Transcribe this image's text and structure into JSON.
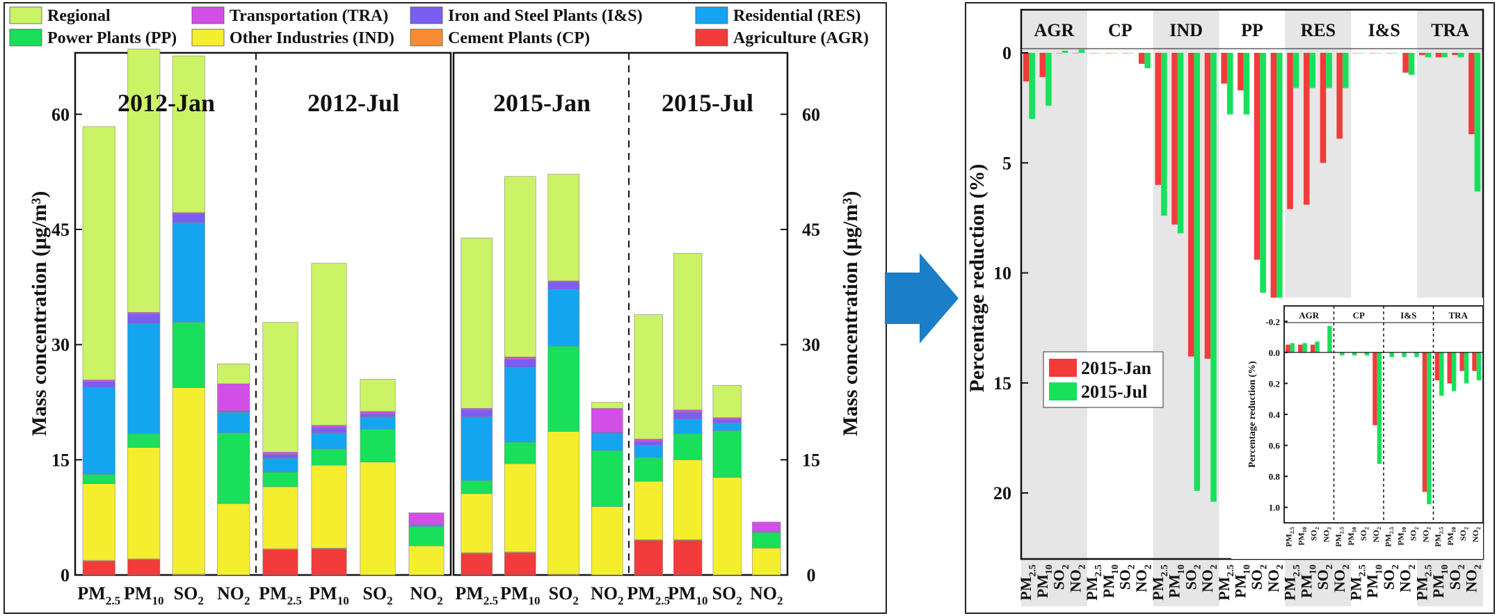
{
  "left_panel": {
    "legend": [
      {
        "label": "Regional",
        "color": "#ccf266"
      },
      {
        "label": "Transportation (TRA)",
        "color": "#d24ee6"
      },
      {
        "label": "Iron and Steel Plants (I&S)",
        "color": "#7a5ef2"
      },
      {
        "label": "Residential (RES)",
        "color": "#14a5f0"
      },
      {
        "label": "Power Plants (PP)",
        "color": "#18e05a"
      },
      {
        "label": "Other Industries (IND)",
        "color": "#f5ee2e"
      },
      {
        "label": "Cement Plants (CP)",
        "color": "#f78c32"
      },
      {
        "label": "Agriculture (AGR)",
        "color": "#f23b3b"
      }
    ],
    "ylabel_left": "Mass concentration (μg/m³)",
    "ylabel_right": "Mass concentration (μg/m³)"
  },
  "right_panel": {
    "ylabel": "Percentage reduction (%)",
    "legend": [
      {
        "label": "2015-Jan",
        "color": "#f23b3b"
      },
      {
        "label": "2015-Jul",
        "color": "#18e05a"
      }
    ],
    "inset_ylabel": "Percentage reduction (%)"
  },
  "chart_data": [
    {
      "type": "bar",
      "stacked": true,
      "ylim": [
        0,
        68
      ],
      "yticks": [
        0,
        15,
        30,
        45,
        60
      ],
      "panels": [
        {
          "title": "2012-Jan",
          "categories": [
            "PM2.5",
            "PM10",
            "SO2",
            "NO2"
          ]
        },
        {
          "title": "2012-Jul",
          "categories": [
            "PM2.5",
            "PM10",
            "SO2",
            "NO2"
          ]
        },
        {
          "title": "2015-Jan",
          "categories": [
            "PM2.5",
            "PM10",
            "SO2",
            "NO2"
          ]
        },
        {
          "title": "2015-Jul",
          "categories": [
            "PM2.5",
            "PM10",
            "SO2",
            "NO2"
          ]
        }
      ],
      "series_order": [
        "Agriculture (AGR)",
        "Cement Plants (CP)",
        "Other Industries (IND)",
        "Power Plants (PP)",
        "Residential (RES)",
        "Iron and Steel Plants (I&S)",
        "Transportation (TRA)",
        "Regional"
      ],
      "values": {
        "2012-Jan": {
          "PM2.5": [
            1.8,
            0.1,
            10.0,
            1.2,
            11.3,
            0.8,
            0.2,
            33.0
          ],
          "PM10": [
            2.0,
            0.1,
            14.5,
            1.8,
            14.3,
            1.3,
            0.2,
            34.3
          ],
          "SO2": [
            0,
            0.1,
            24.3,
            8.5,
            13.0,
            1.2,
            0.1,
            20.4
          ],
          "NO2": [
            0,
            0,
            9.3,
            9.2,
            2.7,
            0.2,
            3.5,
            2.6
          ]
        },
        "2012-Jul": {
          "PM2.5": [
            3.3,
            0.1,
            8.1,
            1.9,
            1.8,
            0.5,
            0.3,
            16.9
          ],
          "PM10": [
            3.4,
            0.1,
            10.8,
            2.1,
            2.1,
            0.7,
            0.3,
            21.1
          ],
          "SO2": [
            0,
            0,
            14.7,
            4.3,
            1.6,
            0.4,
            0.3,
            4.2
          ],
          "NO2": [
            0,
            0,
            3.8,
            2.5,
            0.2,
            0.1,
            1.5,
            0
          ]
        },
        "2015-Jan": {
          "PM2.5": [
            2.8,
            0.1,
            7.7,
            1.7,
            8.3,
            0.9,
            0.2,
            22.2
          ],
          "PM10": [
            2.9,
            0.1,
            11.5,
            2.8,
            9.7,
            1.1,
            0.3,
            23.5
          ],
          "SO2": [
            0,
            0.1,
            18.6,
            11.1,
            7.4,
            1.0,
            0.1,
            13.9
          ],
          "NO2": [
            0,
            0,
            8.9,
            7.3,
            2.2,
            0.2,
            3.1,
            0.8
          ]
        },
        "2015-Jul": {
          "PM2.5": [
            4.5,
            0.1,
            7.6,
            3.1,
            1.6,
            0.5,
            0.3,
            16.2
          ],
          "PM10": [
            4.5,
            0.1,
            10.4,
            3.4,
            1.9,
            0.9,
            0.3,
            20.4
          ],
          "SO2": [
            0,
            0,
            12.7,
            6.1,
            1.0,
            0.5,
            0.2,
            4.2
          ],
          "NO2": [
            0,
            0,
            3.5,
            2.0,
            0.1,
            0.1,
            1.2,
            0
          ]
        }
      }
    },
    {
      "type": "bar",
      "ylim": [
        0,
        23
      ],
      "yticks": [
        0,
        5,
        10,
        15,
        20
      ],
      "y_inverted": true,
      "groups": [
        "AGR",
        "CP",
        "IND",
        "PP",
        "RES",
        "I&S",
        "TRA"
      ],
      "categories": [
        "PM2.5",
        "PM10",
        "SO2",
        "NO2"
      ],
      "series": [
        {
          "name": "2015-Jan",
          "values": {
            "AGR": [
              1.3,
              1.1,
              0,
              0
            ],
            "CP": [
              0,
              0,
              0,
              0.5
            ],
            "IND": [
              6.0,
              7.8,
              13.8,
              13.9
            ],
            "PP": [
              1.4,
              1.7,
              9.4,
              12.6
            ],
            "RES": [
              7.1,
              6.9,
              5.0,
              3.9
            ],
            "I&S": [
              0,
              0,
              0,
              0.9
            ],
            "TRA": [
              0.1,
              0.2,
              0.1,
              3.7
            ]
          }
        },
        {
          "name": "2015-Jul",
          "values": {
            "AGR": [
              3.0,
              2.4,
              -0.1,
              -0.15
            ],
            "CP": [
              0,
              0,
              0,
              0.7
            ],
            "IND": [
              7.4,
              8.2,
              19.9,
              20.4
            ],
            "PP": [
              2.8,
              2.8,
              10.9,
              13.6
            ],
            "RES": [
              1.6,
              1.6,
              1.6,
              1.6
            ],
            "I&S": [
              0,
              0,
              0,
              1.0
            ],
            "TRA": [
              0.2,
              0.2,
              0.2,
              6.3
            ]
          }
        }
      ]
    },
    {
      "type": "bar",
      "inset": true,
      "ylim": [
        -0.3,
        1.1
      ],
      "yticks": [
        -0.2,
        0.0,
        0.2,
        0.4,
        0.6,
        0.8,
        1.0
      ],
      "y_inverted": true,
      "groups": [
        "AGR",
        "CP",
        "I&S",
        "TRA"
      ],
      "categories": [
        "PM2.5",
        "PM10",
        "SO2",
        "NO2"
      ],
      "series": [
        {
          "name": "2015-Jan",
          "values": {
            "AGR": [
              -0.05,
              -0.05,
              -0.05,
              0
            ],
            "CP": [
              0,
              0,
              0,
              0.47
            ],
            "I&S": [
              0,
              0,
              0,
              0.9
            ],
            "TRA": [
              0.18,
              0.2,
              0.12,
              0.12
            ]
          }
        },
        {
          "name": "2015-Jul",
          "values": {
            "AGR": [
              -0.06,
              -0.06,
              -0.07,
              -0.17
            ],
            "CP": [
              0.02,
              0.02,
              0.02,
              0.72
            ],
            "I&S": [
              0.03,
              0.03,
              0.03,
              0.98
            ],
            "TRA": [
              0.28,
              0.25,
              0.2,
              0.18
            ]
          }
        }
      ]
    }
  ]
}
